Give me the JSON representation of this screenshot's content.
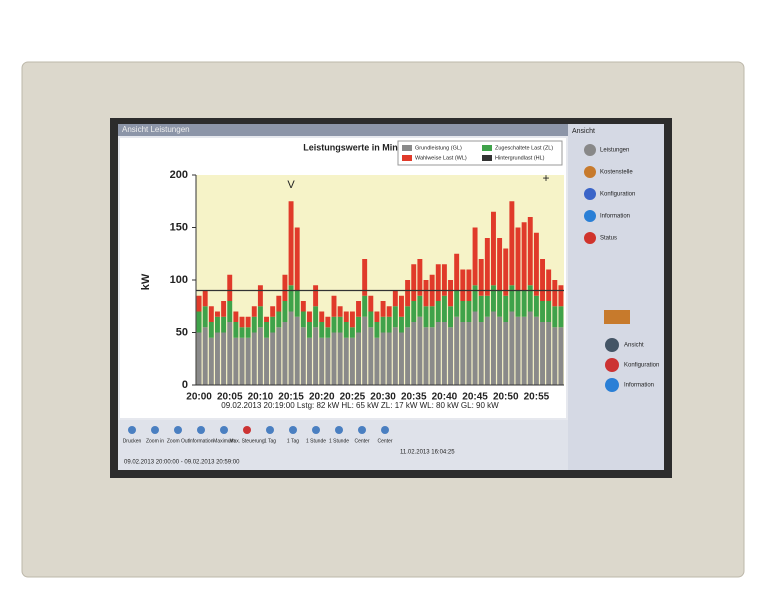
{
  "window_title": "Ansicht Leistungen",
  "chart_data": {
    "type": "bar",
    "stacked": true,
    "title": "Leistungswerte in Minuten",
    "y_label": "kW",
    "annotations": [
      "V",
      "+"
    ],
    "info_line": "09.02.2013 20:19:00 Lstg: 82 kW HL: 65 kW ZL: 17 kW WL: 80 kW GL: 90 kW",
    "categories": [
      "20:00",
      null,
      null,
      null,
      null,
      "20:05",
      null,
      null,
      null,
      null,
      "20:10",
      null,
      null,
      null,
      null,
      "20:15",
      null,
      null,
      null,
      null,
      "20:20",
      null,
      null,
      null,
      null,
      "20:25",
      null,
      null,
      null,
      null,
      "20:30",
      null,
      null,
      null,
      null,
      "20:35",
      null,
      null,
      null,
      null,
      "20:40",
      null,
      null,
      null,
      null,
      "20:45",
      null,
      null,
      null,
      null,
      "20:50",
      null,
      null,
      null,
      null,
      "20:55",
      null,
      null,
      null,
      null
    ],
    "series": [
      {
        "name": "Grundleistung (GL)",
        "color": "#8a8a8a",
        "values": [
          50,
          55,
          45,
          50,
          50,
          60,
          45,
          45,
          45,
          50,
          55,
          45,
          50,
          55,
          60,
          70,
          65,
          55,
          45,
          55,
          45,
          45,
          50,
          50,
          45,
          45,
          50,
          65,
          55,
          45,
          50,
          50,
          55,
          50,
          55,
          60,
          65,
          55,
          55,
          60,
          60,
          55,
          65,
          60,
          60,
          70,
          60,
          65,
          70,
          65,
          60,
          70,
          65,
          65,
          70,
          65,
          60,
          60,
          55,
          55
        ]
      },
      {
        "name": "Zugeschaltete Last (ZL)",
        "color": "#3fa24a",
        "values": [
          20,
          20,
          15,
          15,
          15,
          20,
          15,
          10,
          10,
          15,
          20,
          15,
          15,
          15,
          20,
          25,
          25,
          15,
          15,
          20,
          15,
          10,
          15,
          15,
          15,
          10,
          15,
          20,
          15,
          15,
          15,
          15,
          20,
          15,
          20,
          20,
          20,
          20,
          20,
          20,
          25,
          20,
          25,
          20,
          20,
          25,
          25,
          20,
          25,
          25,
          25,
          25,
          25,
          25,
          25,
          20,
          20,
          20,
          20,
          20
        ]
      },
      {
        "name": "Wahlweise Last (WL)",
        "color": "#e03a2a",
        "values": [
          15,
          15,
          15,
          5,
          15,
          25,
          10,
          10,
          10,
          10,
          20,
          5,
          10,
          15,
          25,
          80,
          60,
          10,
          10,
          20,
          10,
          10,
          20,
          10,
          10,
          15,
          15,
          35,
          15,
          10,
          15,
          10,
          15,
          20,
          25,
          35,
          35,
          25,
          30,
          35,
          30,
          25,
          35,
          30,
          30,
          55,
          35,
          55,
          70,
          50,
          45,
          80,
          60,
          65,
          65,
          60,
          40,
          30,
          25,
          20
        ]
      }
    ],
    "reference_line": {
      "name": "Hintergrundlast (HL)",
      "value": 90,
      "color": "#333333"
    },
    "ylim": [
      0,
      200
    ],
    "yticks": [
      0,
      50,
      100,
      150,
      200
    ]
  },
  "toolbar": {
    "buttons": [
      "Drucken",
      "Zoom in",
      "Zoom Out",
      "Information",
      "Maximum",
      "Max. Steuerung",
      "1 Tag",
      "1 Tag",
      "1 Stunde",
      "1 Stunde",
      "Center",
      "Center"
    ],
    "range": "09.02.2013 20:00:00 - 09.02.2013 20:59:00",
    "timestamp": "11.02.2013 16:04:25"
  },
  "sidebar": {
    "title": "Ansicht",
    "items": [
      "Leistungen",
      "Kostenstelle",
      "Konfiguration",
      "Information",
      "Status"
    ],
    "bottom_items": [
      "Ansicht",
      "Konfiguration",
      "Information"
    ]
  }
}
